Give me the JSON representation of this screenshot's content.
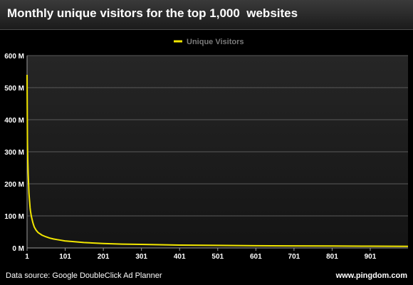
{
  "header": {
    "title": "Monthly unique visitors for the top 1,000  websites"
  },
  "footer": {
    "source": "Data source: Google DoubleClick Ad Planner",
    "credit": "www.pingdom.com"
  },
  "colors": {
    "background": "#000000",
    "plot_background_top": "#262626",
    "plot_background_bottom": "#141414",
    "gridline": "#5a5a5a",
    "series": "#f2e600"
  },
  "chart_data": {
    "type": "line",
    "title": "Monthly unique visitors for the top 1,000  websites",
    "xlabel": "",
    "ylabel": "",
    "xlim": [
      1,
      1000
    ],
    "ylim": [
      0,
      600000000
    ],
    "grid": true,
    "legend_position": "top-center",
    "x_tick_values": [
      1,
      101,
      201,
      301,
      401,
      501,
      601,
      701,
      801,
      901
    ],
    "x_tick_labels": [
      "1",
      "101",
      "201",
      "301",
      "401",
      "501",
      "601",
      "701",
      "801",
      "901"
    ],
    "y_tick_values": [
      0,
      100000000,
      200000000,
      300000000,
      400000000,
      500000000,
      600000000
    ],
    "y_tick_labels": [
      "0 M",
      "100 M",
      "200 M",
      "300 M",
      "400 M",
      "500 M",
      "600 M"
    ],
    "series": [
      {
        "name": "Unique Visitors",
        "x": [
          1,
          2,
          3,
          4,
          5,
          6,
          7,
          8,
          9,
          10,
          12,
          14,
          16,
          18,
          20,
          25,
          30,
          40,
          50,
          60,
          70,
          80,
          90,
          100,
          120,
          150,
          200,
          250,
          300,
          400,
          500,
          600,
          700,
          800,
          900,
          1000
        ],
        "values": [
          540000000,
          330000000,
          270000000,
          230000000,
          200000000,
          170000000,
          155000000,
          140000000,
          125000000,
          115000000,
          100000000,
          90000000,
          80000000,
          72000000,
          65000000,
          55000000,
          48000000,
          40000000,
          35000000,
          31000000,
          28000000,
          26000000,
          24000000,
          22000000,
          20000000,
          17000000,
          14000000,
          12000000,
          11000000,
          9000000,
          8000000,
          7000000,
          6500000,
          6000000,
          5500000,
          5000000
        ]
      }
    ]
  }
}
